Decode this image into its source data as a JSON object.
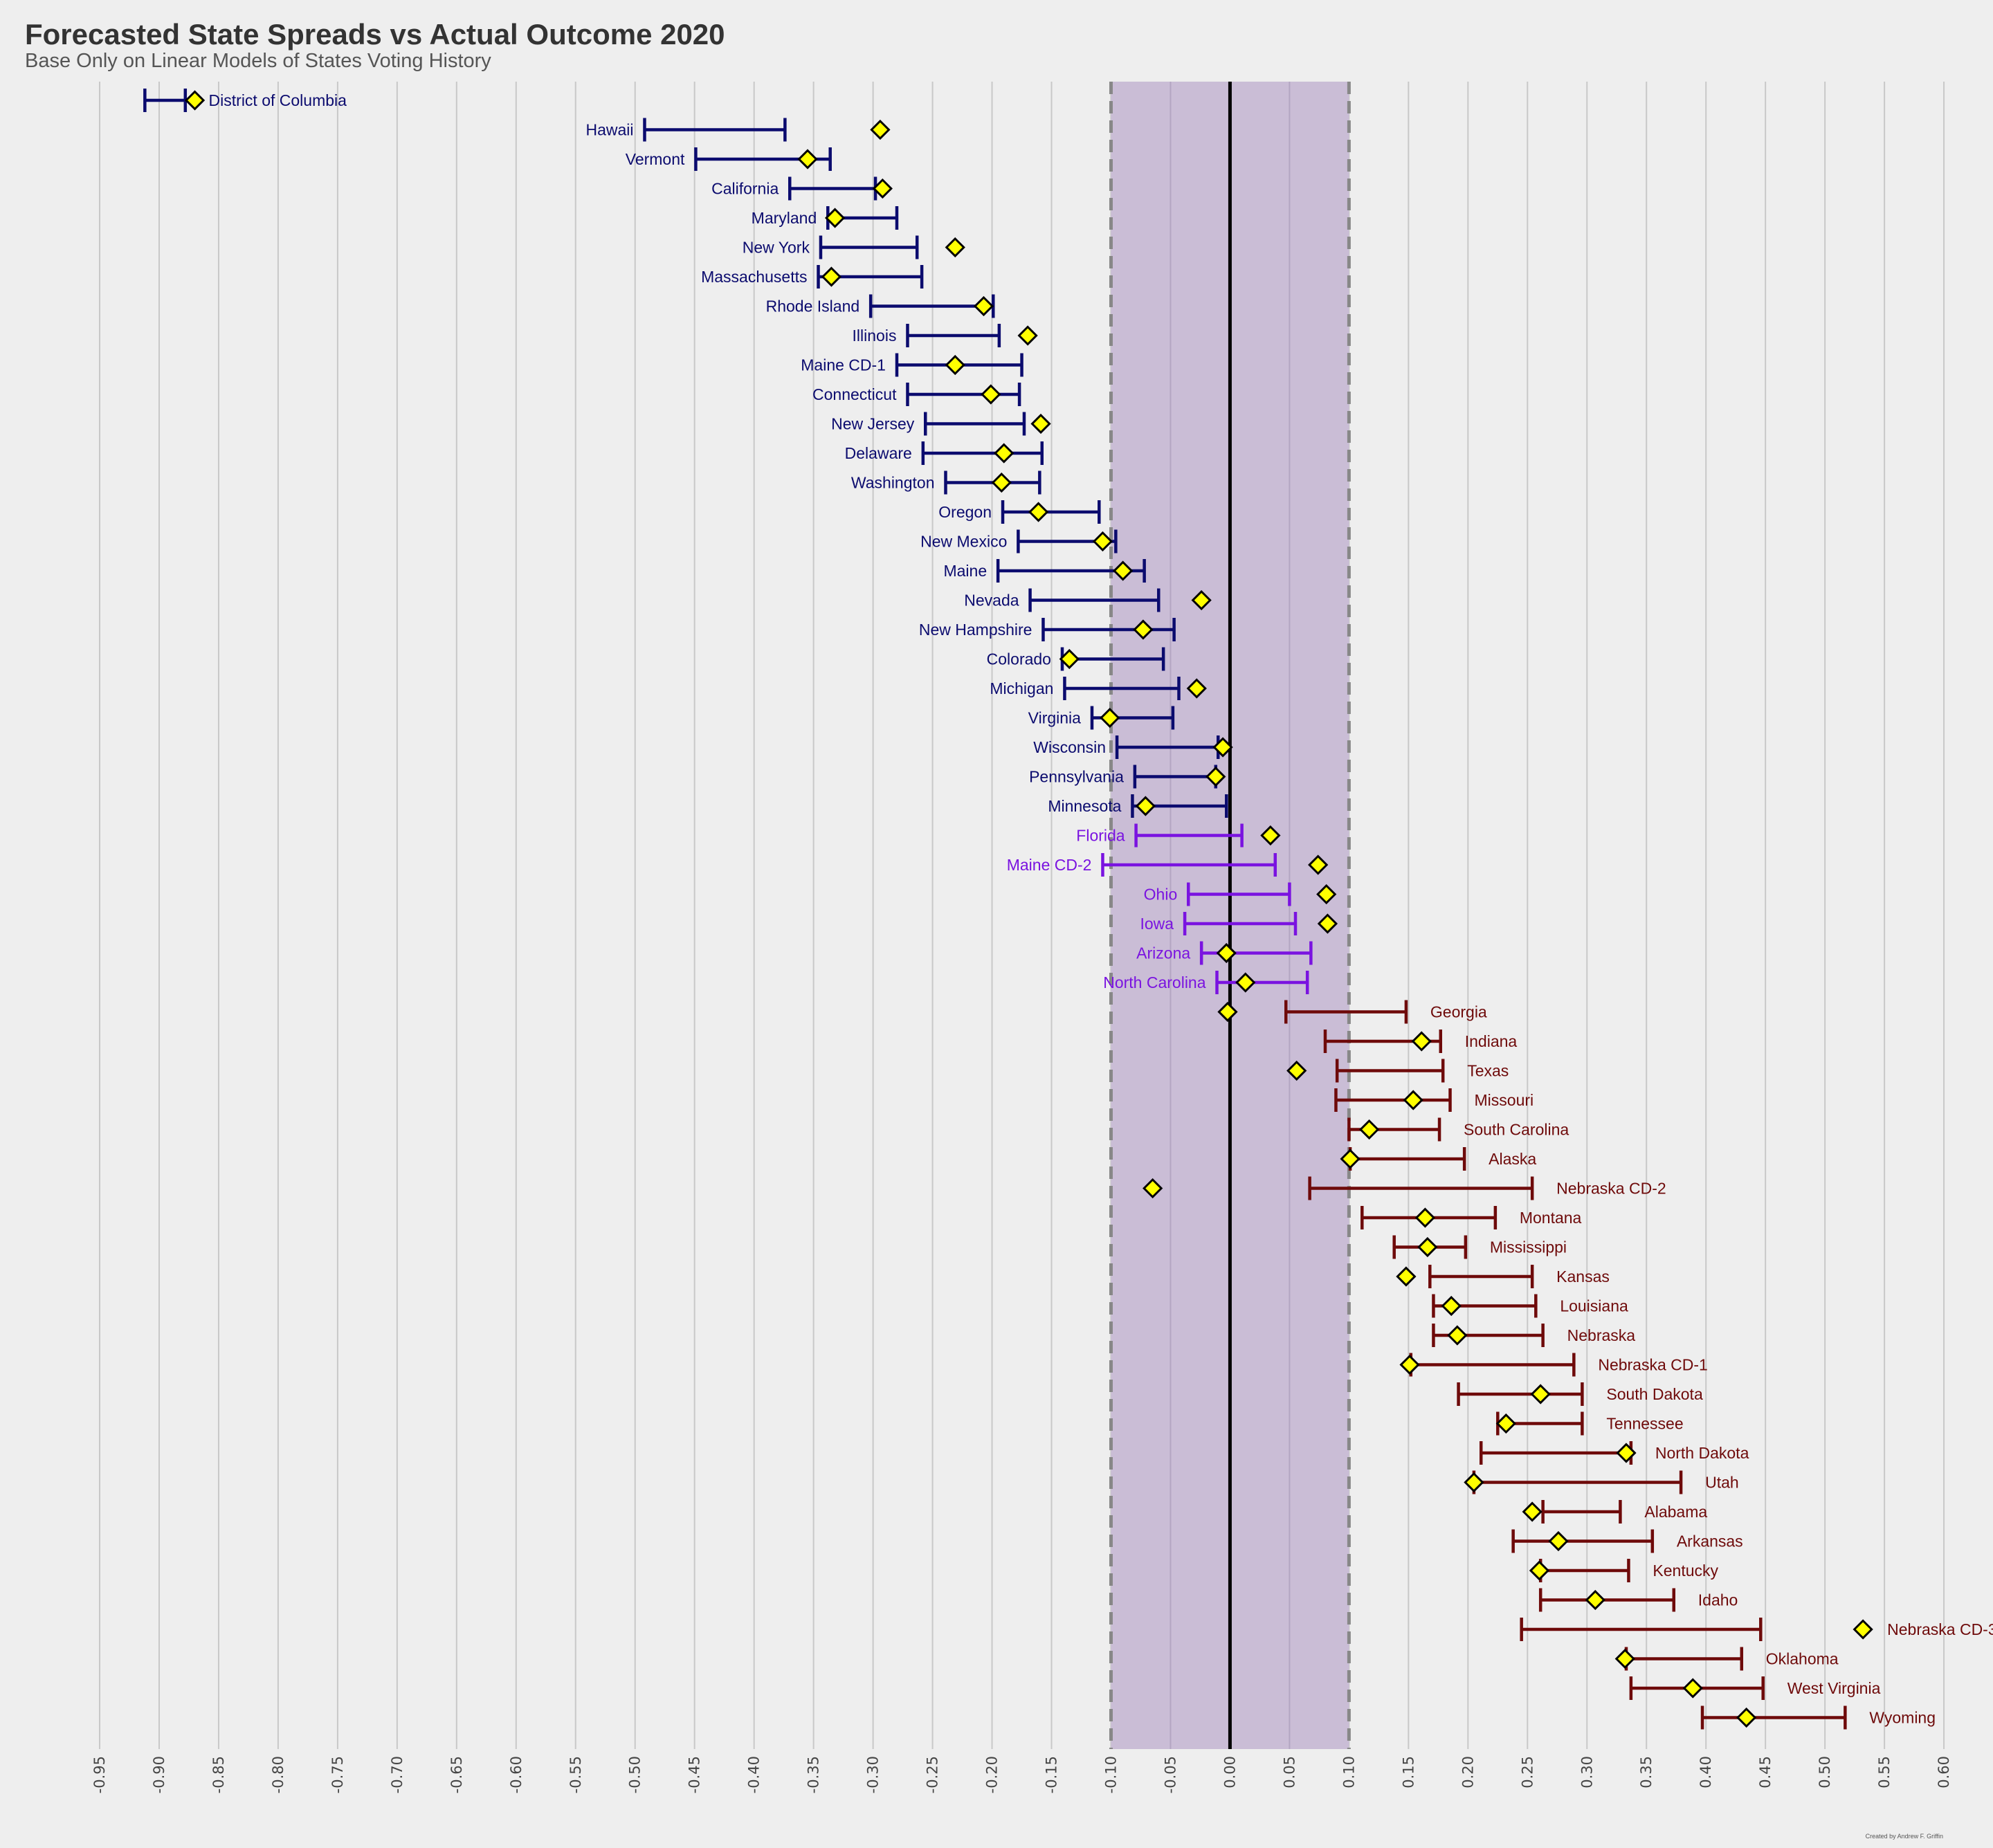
{
  "title": "Forecasted State Spreads vs Actual Outcome 2020",
  "subtitle": "Base Only on Linear Models of States Voting History",
  "credit": "Created by Andrew F. Griffin",
  "colors": {
    "background": "#eeeeee",
    "grid": "#c8c8c8",
    "band": "#cabdd6",
    "band_edge": "#888888",
    "zero_line": "#000000",
    "marker_fill": "#ffff00",
    "marker_stroke": "#000000",
    "dem": "#0b0b6e",
    "swing": "#7a13e0",
    "rep": "#6e0a0a"
  },
  "chart_data": {
    "type": "errorbar",
    "xlim": [
      -0.95,
      0.6
    ],
    "xticks": [
      "-0.95",
      "-0.90",
      "-0.85",
      "-0.80",
      "-0.75",
      "-0.70",
      "-0.65",
      "-0.60",
      "-0.55",
      "-0.50",
      "-0.45",
      "-0.40",
      "-0.35",
      "-0.30",
      "-0.25",
      "-0.20",
      "-0.15",
      "-0.10",
      "-0.05",
      "0.00",
      "0.05",
      "0.10",
      "0.15",
      "0.20",
      "0.25",
      "0.30",
      "0.35",
      "0.40",
      "0.45",
      "0.50",
      "0.55",
      "0.60"
    ],
    "tick_values": [
      -0.95,
      -0.9,
      -0.85,
      -0.8,
      -0.75,
      -0.7,
      -0.65,
      -0.6,
      -0.55,
      -0.5,
      -0.45,
      -0.4,
      -0.35,
      -0.3,
      -0.25,
      -0.2,
      -0.15,
      -0.1,
      -0.05,
      0.0,
      0.05,
      0.1,
      0.15,
      0.2,
      0.25,
      0.3,
      0.35,
      0.4,
      0.45,
      0.5,
      0.55,
      0.6
    ],
    "grid": true,
    "band": [
      -0.1,
      0.1
    ],
    "zero_line": 0.0,
    "states": [
      {
        "name": "District of Columbia",
        "group": "dem",
        "lo": -0.912,
        "hi": -0.878,
        "actual": -0.87
      },
      {
        "name": "Hawaii",
        "group": "dem",
        "lo": -0.492,
        "hi": -0.374,
        "actual": -0.294
      },
      {
        "name": "Vermont",
        "group": "dem",
        "lo": -0.449,
        "hi": -0.336,
        "actual": -0.355
      },
      {
        "name": "California",
        "group": "dem",
        "lo": -0.37,
        "hi": -0.298,
        "actual": -0.292
      },
      {
        "name": "Maryland",
        "group": "dem",
        "lo": -0.338,
        "hi": -0.28,
        "actual": -0.332
      },
      {
        "name": "New York",
        "group": "dem",
        "lo": -0.344,
        "hi": -0.263,
        "actual": -0.231
      },
      {
        "name": "Massachusetts",
        "group": "dem",
        "lo": -0.346,
        "hi": -0.259,
        "actual": -0.335
      },
      {
        "name": "Rhode Island",
        "group": "dem",
        "lo": -0.302,
        "hi": -0.199,
        "actual": -0.207
      },
      {
        "name": "Illinois",
        "group": "dem",
        "lo": -0.271,
        "hi": -0.194,
        "actual": -0.17
      },
      {
        "name": "Maine CD-1",
        "group": "dem",
        "lo": -0.28,
        "hi": -0.175,
        "actual": -0.231
      },
      {
        "name": "Connecticut",
        "group": "dem",
        "lo": -0.271,
        "hi": -0.177,
        "actual": -0.201
      },
      {
        "name": "New Jersey",
        "group": "dem",
        "lo": -0.256,
        "hi": -0.173,
        "actual": -0.159
      },
      {
        "name": "Delaware",
        "group": "dem",
        "lo": -0.258,
        "hi": -0.158,
        "actual": -0.19
      },
      {
        "name": "Washington",
        "group": "dem",
        "lo": -0.239,
        "hi": -0.16,
        "actual": -0.192
      },
      {
        "name": "Oregon",
        "group": "dem",
        "lo": -0.191,
        "hi": -0.11,
        "actual": -0.161
      },
      {
        "name": "New Mexico",
        "group": "dem",
        "lo": -0.178,
        "hi": -0.096,
        "actual": -0.107
      },
      {
        "name": "Maine",
        "group": "dem",
        "lo": -0.195,
        "hi": -0.072,
        "actual": -0.09
      },
      {
        "name": "Nevada",
        "group": "dem",
        "lo": -0.168,
        "hi": -0.06,
        "actual": -0.024
      },
      {
        "name": "New Hampshire",
        "group": "dem",
        "lo": -0.157,
        "hi": -0.047,
        "actual": -0.073
      },
      {
        "name": "Colorado",
        "group": "dem",
        "lo": -0.141,
        "hi": -0.056,
        "actual": -0.135
      },
      {
        "name": "Michigan",
        "group": "dem",
        "lo": -0.139,
        "hi": -0.043,
        "actual": -0.028
      },
      {
        "name": "Virginia",
        "group": "dem",
        "lo": -0.116,
        "hi": -0.048,
        "actual": -0.101
      },
      {
        "name": "Wisconsin",
        "group": "dem",
        "lo": -0.095,
        "hi": -0.01,
        "actual": -0.006
      },
      {
        "name": "Pennsylvania",
        "group": "dem",
        "lo": -0.08,
        "hi": -0.012,
        "actual": -0.012
      },
      {
        "name": "Minnesota",
        "group": "dem",
        "lo": -0.082,
        "hi": -0.003,
        "actual": -0.071
      },
      {
        "name": "Florida",
        "group": "swing",
        "lo": -0.079,
        "hi": 0.01,
        "actual": 0.034
      },
      {
        "name": "Maine CD-2",
        "group": "swing",
        "lo": -0.107,
        "hi": 0.038,
        "actual": 0.074
      },
      {
        "name": "Ohio",
        "group": "swing",
        "lo": -0.035,
        "hi": 0.05,
        "actual": 0.081
      },
      {
        "name": "Iowa",
        "group": "swing",
        "lo": -0.038,
        "hi": 0.055,
        "actual": 0.082
      },
      {
        "name": "Arizona",
        "group": "swing",
        "lo": -0.024,
        "hi": 0.068,
        "actual": -0.003
      },
      {
        "name": "North Carolina",
        "group": "swing",
        "lo": -0.011,
        "hi": 0.065,
        "actual": 0.013
      },
      {
        "name": "Georgia",
        "group": "rep",
        "lo": 0.047,
        "hi": 0.148,
        "actual": -0.002
      },
      {
        "name": "Indiana",
        "group": "rep",
        "lo": 0.08,
        "hi": 0.177,
        "actual": 0.161
      },
      {
        "name": "Texas",
        "group": "rep",
        "lo": 0.09,
        "hi": 0.179,
        "actual": 0.056
      },
      {
        "name": "Missouri",
        "group": "rep",
        "lo": 0.089,
        "hi": 0.185,
        "actual": 0.154
      },
      {
        "name": "South Carolina",
        "group": "rep",
        "lo": 0.1,
        "hi": 0.176,
        "actual": 0.117
      },
      {
        "name": "Alaska",
        "group": "rep",
        "lo": 0.101,
        "hi": 0.197,
        "actual": 0.101
      },
      {
        "name": "Nebraska CD-2",
        "group": "rep",
        "lo": 0.067,
        "hi": 0.254,
        "actual": -0.065
      },
      {
        "name": "Montana",
        "group": "rep",
        "lo": 0.111,
        "hi": 0.223,
        "actual": 0.164
      },
      {
        "name": "Mississippi",
        "group": "rep",
        "lo": 0.138,
        "hi": 0.198,
        "actual": 0.166
      },
      {
        "name": "Kansas",
        "group": "rep",
        "lo": 0.168,
        "hi": 0.254,
        "actual": 0.148
      },
      {
        "name": "Louisiana",
        "group": "rep",
        "lo": 0.171,
        "hi": 0.257,
        "actual": 0.186
      },
      {
        "name": "Nebraska",
        "group": "rep",
        "lo": 0.171,
        "hi": 0.263,
        "actual": 0.191
      },
      {
        "name": "Nebraska CD-1",
        "group": "rep",
        "lo": 0.152,
        "hi": 0.289,
        "actual": 0.151
      },
      {
        "name": "South Dakota",
        "group": "rep",
        "lo": 0.192,
        "hi": 0.296,
        "actual": 0.261
      },
      {
        "name": "Tennessee",
        "group": "rep",
        "lo": 0.225,
        "hi": 0.296,
        "actual": 0.232
      },
      {
        "name": "North Dakota",
        "group": "rep",
        "lo": 0.211,
        "hi": 0.337,
        "actual": 0.333
      },
      {
        "name": "Utah",
        "group": "rep",
        "lo": 0.205,
        "hi": 0.379,
        "actual": 0.205
      },
      {
        "name": "Alabama",
        "group": "rep",
        "lo": 0.263,
        "hi": 0.328,
        "actual": 0.254
      },
      {
        "name": "Arkansas",
        "group": "rep",
        "lo": 0.238,
        "hi": 0.355,
        "actual": 0.276
      },
      {
        "name": "Kentucky",
        "group": "rep",
        "lo": 0.261,
        "hi": 0.335,
        "actual": 0.26
      },
      {
        "name": "Idaho",
        "group": "rep",
        "lo": 0.261,
        "hi": 0.373,
        "actual": 0.307
      },
      {
        "name": "Nebraska CD-3",
        "group": "rep",
        "lo": 0.245,
        "hi": 0.446,
        "actual": 0.532
      },
      {
        "name": "Oklahoma",
        "group": "rep",
        "lo": 0.333,
        "hi": 0.43,
        "actual": 0.332
      },
      {
        "name": "West Virginia",
        "group": "rep",
        "lo": 0.337,
        "hi": 0.448,
        "actual": 0.389
      },
      {
        "name": "Wyoming",
        "group": "rep",
        "lo": 0.397,
        "hi": 0.517,
        "actual": 0.434
      }
    ]
  }
}
